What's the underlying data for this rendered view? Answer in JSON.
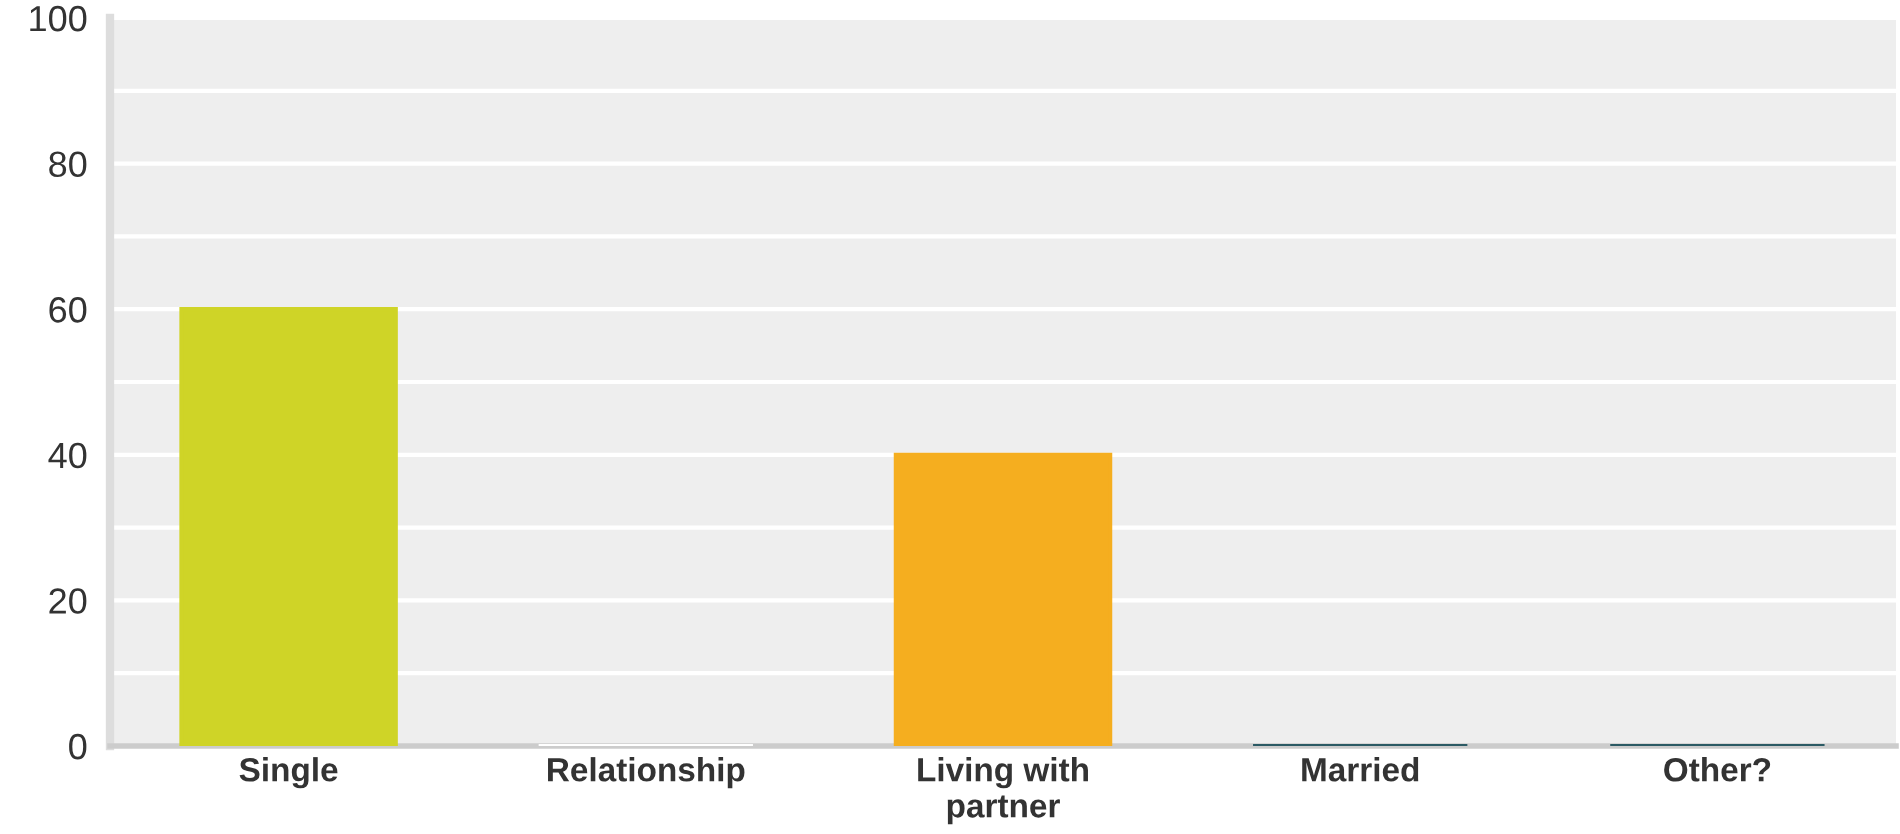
{
  "chart_data": {
    "type": "bar",
    "categories": [
      "Single",
      "Relationship",
      "Living with\npartner",
      "Married",
      "Other?"
    ],
    "values": [
      60,
      0,
      40,
      0,
      0
    ],
    "colors": [
      "#cfd427",
      "#ffffff",
      "#f5ae1f",
      "#2b5a64",
      "#2b5a64"
    ],
    "ylim": [
      0,
      100
    ],
    "yticks": [
      0,
      {
        "value": 10,
        "label": null
      },
      20,
      {
        "value": 30,
        "label": null
      },
      40,
      {
        "value": 50,
        "label": null
      },
      60,
      {
        "value": 70,
        "label": null
      },
      80,
      {
        "value": 90,
        "label": null
      },
      100
    ],
    "grid": "y"
  }
}
